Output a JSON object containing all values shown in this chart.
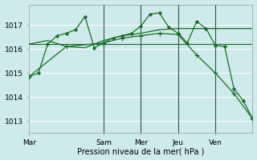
{
  "background_color": "#ceeaea",
  "grid_color": "#ffffff",
  "line_color": "#1a6b2a",
  "title": "Pression niveau de la mer( hPa )",
  "ylim": [
    1012.5,
    1017.85
  ],
  "yticks": [
    1013,
    1014,
    1015,
    1016,
    1017
  ],
  "xtick_labels": [
    "Mar",
    "Sam",
    "Mer",
    "Jeu",
    "Ven"
  ],
  "xtick_positions": [
    0,
    2,
    3,
    4,
    5
  ],
  "vline_positions": [
    2,
    3,
    4,
    5
  ],
  "series1_x": [
    0.0,
    0.25,
    0.5,
    0.75,
    1.0,
    1.25,
    1.5,
    1.75,
    2.0,
    2.25,
    2.5,
    2.75,
    3.0,
    3.25,
    3.5,
    3.75,
    4.0,
    4.25,
    4.5,
    4.75,
    5.0,
    5.25,
    5.5,
    5.75,
    6.0
  ],
  "series1_y": [
    1014.85,
    1015.0,
    1016.2,
    1016.55,
    1016.65,
    1016.8,
    1017.35,
    1016.05,
    1016.25,
    1016.45,
    1016.55,
    1016.65,
    1016.95,
    1017.45,
    1017.5,
    1016.9,
    1016.65,
    1016.25,
    1017.15,
    1016.85,
    1016.15,
    1016.1,
    1014.35,
    1013.85,
    1013.1
  ],
  "series2_x": [
    0.0,
    0.5,
    1.0,
    1.5,
    2.0,
    2.5,
    3.0,
    3.5,
    4.0,
    4.5,
    5.0,
    5.5,
    6.0
  ],
  "series2_y": [
    1016.2,
    1016.35,
    1016.1,
    1016.05,
    1016.35,
    1016.55,
    1016.65,
    1016.8,
    1016.85,
    1016.85,
    1016.85,
    1016.85,
    1016.85
  ],
  "series3_x": [
    0.0,
    1.0,
    2.0,
    2.5,
    3.0,
    3.5,
    4.0,
    4.5,
    5.0,
    5.5,
    6.0
  ],
  "series3_y": [
    1014.85,
    1016.1,
    1016.25,
    1016.45,
    1016.55,
    1016.65,
    1016.6,
    1015.75,
    1015.0,
    1014.15,
    1013.1
  ],
  "series4_x": [
    0.0,
    6.0
  ],
  "series4_y": [
    1016.2,
    1016.2
  ],
  "xlim": [
    0,
    6.0
  ]
}
